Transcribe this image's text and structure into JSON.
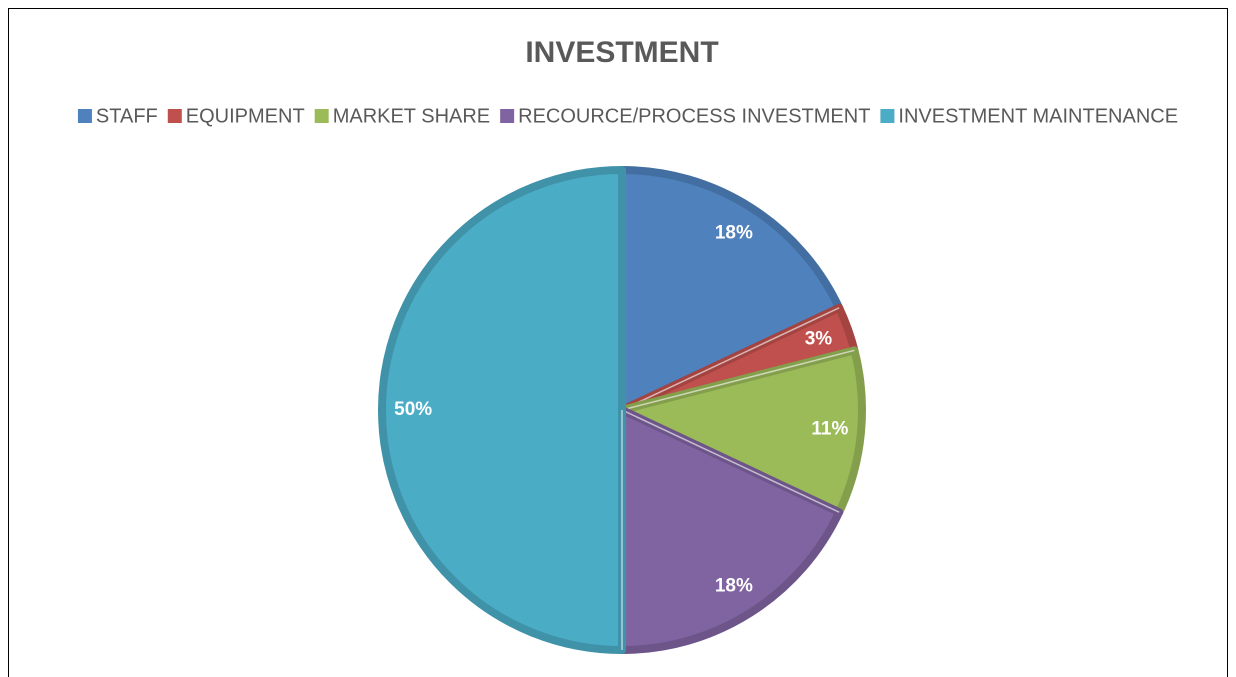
{
  "chart_data": {
    "type": "pie",
    "title": "INVESTMENT",
    "categories": [
      "STAFF",
      "EQUIPMENT",
      "MARKET SHARE",
      "RECOURCE/PROCESS INVESTMENT",
      "INVESTMENT MAINTENANCE"
    ],
    "values": [
      18,
      3,
      11,
      18,
      50
    ],
    "value_labels": [
      "18%",
      "3%",
      "11%",
      "18%",
      "50%"
    ],
    "colors": [
      "#4f81bd",
      "#c0504d",
      "#9bbb59",
      "#8064a2",
      "#4bacc6"
    ],
    "legend": "top"
  }
}
